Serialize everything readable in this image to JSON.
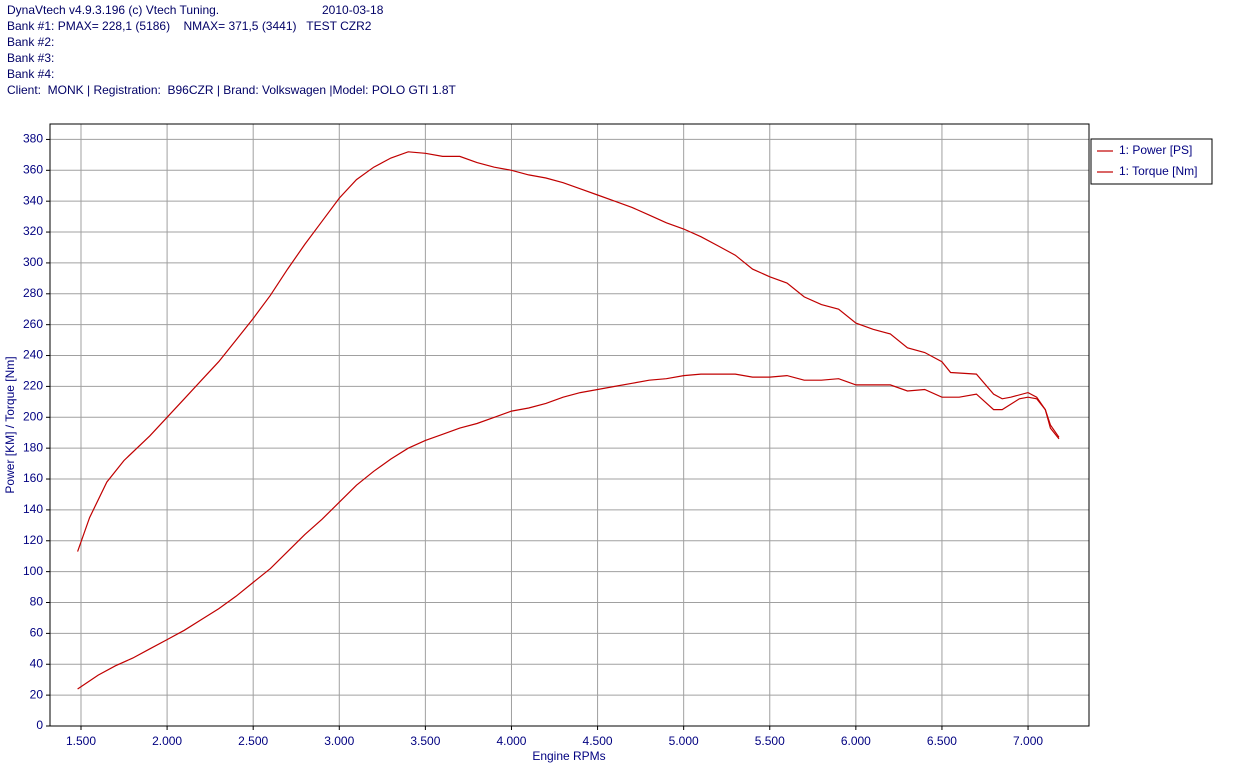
{
  "header": {
    "title": "DynaVtech v4.9.3.196 (c) Vtech Tuning.",
    "date": "2010-03-18",
    "lines": [
      "Bank #1: PMAX= 228,1 (5186)    NMAX= 371,5 (3441)   TEST CZR2",
      "Bank #2:",
      "Bank #3:",
      "Bank #4:",
      "Client:  MONK | Registration:  B96CZR | Brand: Volkswagen |Model: POLO GTI 1.8T"
    ]
  },
  "chart_data": {
    "type": "line",
    "x_label": "Engine RPMs",
    "y_label": "Power [KM] / Torque [Nm]",
    "xlim": [
      1320,
      7354
    ],
    "ylim": [
      0,
      390
    ],
    "grid": true,
    "legend": "right",
    "xticks": [
      {
        "value": 1500,
        "label": "1.500"
      },
      {
        "value": 2000,
        "label": "2.000"
      },
      {
        "value": 2500,
        "label": "2.500"
      },
      {
        "value": 3000,
        "label": "3.000"
      },
      {
        "value": 3500,
        "label": "3.500"
      },
      {
        "value": 4000,
        "label": "4.000"
      },
      {
        "value": 4500,
        "label": "4.500"
      },
      {
        "value": 5000,
        "label": "5.000"
      },
      {
        "value": 5500,
        "label": "5.500"
      },
      {
        "value": 6000,
        "label": "6.000"
      },
      {
        "value": 6500,
        "label": "6.500"
      },
      {
        "value": 7000,
        "label": "7.000"
      }
    ],
    "yticks": [
      0,
      20,
      40,
      60,
      80,
      100,
      120,
      140,
      160,
      180,
      200,
      220,
      240,
      260,
      280,
      300,
      320,
      340,
      360,
      380
    ],
    "series": [
      {
        "name": "1: Power [PS]",
        "color": "#c00000",
        "x": [
          1480,
          1600,
          1700,
          1800,
          1900,
          2000,
          2100,
          2200,
          2300,
          2400,
          2500,
          2600,
          2700,
          2800,
          2900,
          3000,
          3100,
          3200,
          3300,
          3400,
          3500,
          3600,
          3700,
          3800,
          3900,
          4000,
          4100,
          4200,
          4300,
          4400,
          4500,
          4600,
          4700,
          4800,
          4900,
          5000,
          5100,
          5200,
          5300,
          5400,
          5500,
          5600,
          5700,
          5800,
          5900,
          6000,
          6100,
          6200,
          6300,
          6400,
          6500,
          6600,
          6700,
          6800,
          6850,
          6950,
          7000,
          7050,
          7100,
          7130,
          7180
        ],
        "values": [
          24,
          33,
          39,
          44,
          50,
          56,
          62,
          69,
          76,
          84,
          93,
          102,
          113,
          124,
          134,
          145,
          156,
          165,
          173,
          180,
          185,
          189,
          193,
          196,
          200,
          204,
          206,
          209,
          213,
          216,
          218,
          220,
          222,
          224,
          225,
          227,
          228,
          228,
          228,
          226,
          226,
          227,
          224,
          224,
          225,
          221,
          221,
          221,
          217,
          218,
          213,
          213,
          215,
          205,
          205,
          212,
          213,
          212,
          205,
          195,
          187
        ]
      },
      {
        "name": "1: Torque [Nm]",
        "color": "#c00000",
        "x": [
          1480,
          1550,
          1650,
          1750,
          1900,
          2000,
          2100,
          2200,
          2300,
          2400,
          2500,
          2600,
          2700,
          2800,
          2900,
          3000,
          3100,
          3200,
          3300,
          3400,
          3500,
          3600,
          3700,
          3800,
          3900,
          4000,
          4100,
          4200,
          4300,
          4400,
          4500,
          4600,
          4700,
          4800,
          4900,
          5000,
          5100,
          5200,
          5300,
          5400,
          5500,
          5600,
          5700,
          5800,
          5900,
          6000,
          6100,
          6200,
          6300,
          6400,
          6500,
          6550,
          6700,
          6800,
          6850,
          6900,
          7000,
          7050,
          7100,
          7130,
          7180
        ],
        "values": [
          113,
          135,
          158,
          172,
          188,
          200,
          212,
          224,
          236,
          250,
          264,
          279,
          296,
          312,
          327,
          342,
          354,
          362,
          368,
          372,
          371,
          369,
          369,
          365,
          362,
          360,
          357,
          355,
          352,
          348,
          344,
          340,
          336,
          331,
          326,
          322,
          317,
          311,
          305,
          296,
          291,
          287,
          278,
          273,
          270,
          261,
          257,
          254,
          245,
          242,
          236,
          229,
          228,
          215,
          212,
          213,
          216,
          213,
          205,
          193,
          186
        ]
      }
    ]
  }
}
